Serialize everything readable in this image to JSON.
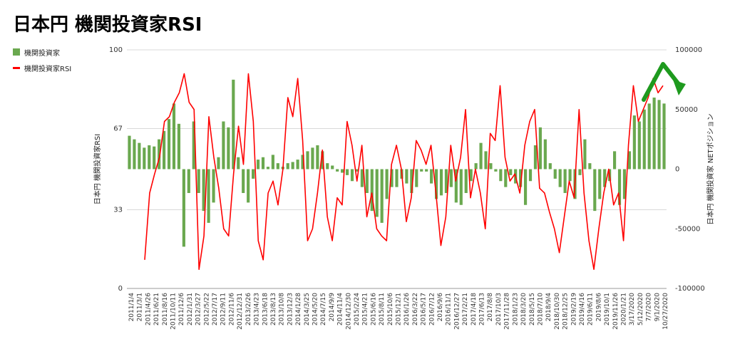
{
  "title": "日本円 機関投資家RSI",
  "legend": {
    "bar_label": "機関投資家",
    "line_label": "機関投資家RSI"
  },
  "colors": {
    "bars": "#6aa84f",
    "line": "#ff0000",
    "arrow": "#1e9a1e"
  },
  "chart_data": {
    "type": "bar",
    "title": "日本円 機関投資家RSI",
    "ylabel": "日本円 機関投資家RSI",
    "y2label": "日本円 機関投資家 NETポジション",
    "ylim": [
      0,
      100
    ],
    "y2lim": [
      -100000,
      100000
    ],
    "yticks": [
      "0",
      "33",
      "67",
      "100"
    ],
    "y2ticks": [
      "-100000",
      "-50000",
      "0",
      "50000",
      "100000"
    ],
    "x_tick_labels": [
      "2011/1/4",
      "2011/3/1",
      "2011/4/26",
      "2011/6/21",
      "2011/8/16",
      "2011/10/11",
      "2011/12/6",
      "2012/1/31",
      "2012/3/27",
      "2012/5/22",
      "2012/7/17",
      "2012/9/11",
      "2012/11/6",
      "2012/12/31",
      "2013/2/26",
      "2013/4/23",
      "2013/6/18",
      "2013/8/13",
      "2013/10/8",
      "2013/12/3",
      "2014/1/28",
      "2014/3/25",
      "2014/5/20",
      "2014/7/15",
      "2014/9/9",
      "2014/11/4",
      "2014/12/30",
      "2015/2/24",
      "2015/4/21",
      "2015/6/16",
      "2015/8/11",
      "2015/10/6",
      "2015/12/1",
      "2016/1/26",
      "2016/3/22",
      "2016/5/17",
      "2016/7/12",
      "2016/9/6",
      "2016/11/1",
      "2016/12/27",
      "2017/2/21",
      "2017/4/18",
      "2017/6/13",
      "2017/8/8",
      "2017/10/3",
      "2017/11/28",
      "2018/1/23",
      "2018/3/20",
      "2018/5/15",
      "2018/7/10",
      "2018/9/4",
      "2018/10/30",
      "2018/12/25",
      "2019/2/19",
      "2019/4/16",
      "2019/6/11",
      "2019/8/6",
      "2019/10/1",
      "2019/11/26",
      "2020/1/21",
      "3/17/2020",
      "5/12/2020",
      "7/7/2020",
      "9/1/2020",
      "10/27/2020"
    ],
    "series": [
      {
        "name": "機関投資家",
        "type": "bar",
        "axis": "right",
        "values": [
          28000,
          25000,
          22000,
          18000,
          20000,
          19000,
          25000,
          32000,
          42000,
          55000,
          38000,
          -65000,
          -20000,
          40000,
          -20000,
          -35000,
          -45000,
          -28000,
          10000,
          40000,
          35000,
          75000,
          10000,
          -20000,
          -28000,
          -8000,
          8000,
          10000,
          2000,
          12000,
          5000,
          2000,
          5000,
          6000,
          8000,
          12000,
          15000,
          18000,
          20000,
          15000,
          5000,
          3000,
          -2000,
          -3000,
          -5000,
          -10000,
          -2000,
          -15000,
          -20000,
          -35000,
          -40000,
          -45000,
          -25000,
          -15000,
          -15000,
          -8000,
          -12000,
          -20000,
          -15000,
          -2000,
          -2000,
          -12000,
          -25000,
          -22000,
          -20000,
          -15000,
          -28000,
          -30000,
          -20000,
          -10000,
          5000,
          22000,
          15000,
          5000,
          -2000,
          -10000,
          -15000,
          -5000,
          -12000,
          -15000,
          -30000,
          -10000,
          20000,
          35000,
          25000,
          5000,
          -8000,
          -15000,
          -20000,
          -10000,
          -25000,
          -5000,
          25000,
          5000,
          -35000,
          -25000,
          -15000,
          -10000,
          15000,
          -30000,
          -25000,
          15000,
          45000,
          40000,
          50000,
          55000,
          60000,
          58000,
          55000
        ]
      },
      {
        "name": "機関投資家RSI",
        "type": "line",
        "axis": "left",
        "values": [
          12,
          40,
          48,
          55,
          70,
          72,
          78,
          82,
          90,
          78,
          75,
          8,
          22,
          72,
          55,
          42,
          25,
          22,
          48,
          68,
          52,
          90,
          70,
          20,
          12,
          40,
          45,
          35,
          50,
          80,
          72,
          88,
          62,
          20,
          25,
          40,
          58,
          30,
          20,
          38,
          35,
          70,
          60,
          45,
          60,
          30,
          40,
          25,
          22,
          20,
          52,
          60,
          50,
          28,
          38,
          62,
          58,
          52,
          60,
          40,
          18,
          30,
          60,
          45,
          55,
          75,
          38,
          50,
          40,
          25,
          65,
          62,
          85,
          55,
          45,
          48,
          40,
          60,
          70,
          75,
          42,
          40,
          32,
          25,
          15,
          30,
          45,
          38,
          75,
          40,
          20,
          8,
          25,
          40,
          50,
          35,
          40,
          20,
          60,
          85,
          70,
          75,
          80,
          88,
          82,
          85
        ]
      }
    ],
    "annotations": [
      {
        "type": "arrow",
        "description": "green arrow up then down near latest data"
      }
    ]
  }
}
